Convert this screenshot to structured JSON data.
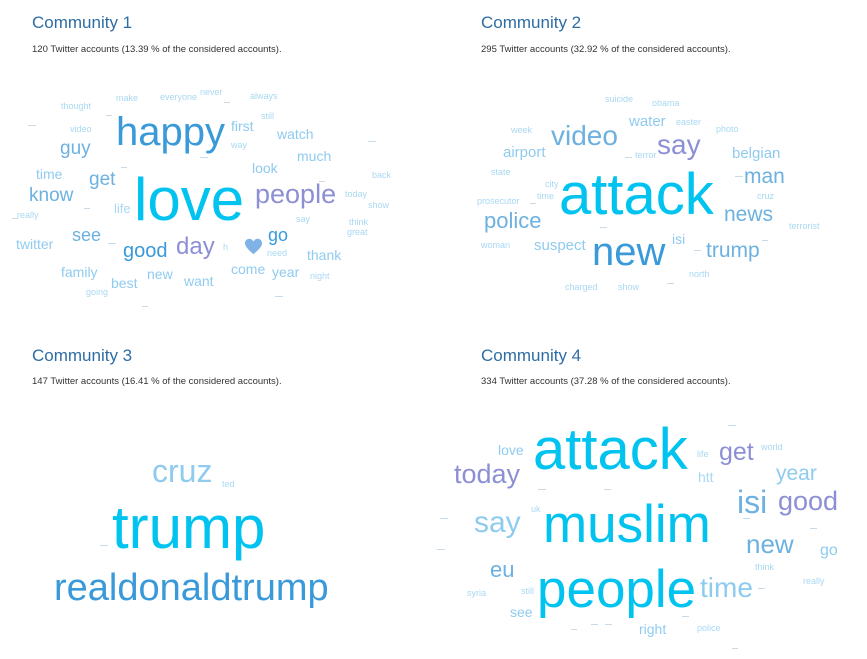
{
  "communities": [
    {
      "title": "Community 1",
      "subtitle": "120 Twitter accounts (13.39 % of the considered accounts).",
      "words": {
        "love": "love",
        "happy": "happy",
        "people": "people",
        "day": "day",
        "good": "good",
        "know": "know",
        "get": "get",
        "guy": "guy",
        "see": "see",
        "go": "go",
        "first": "first",
        "watch": "watch",
        "much": "much",
        "look": "look",
        "come": "come",
        "year": "year",
        "thank": "thank",
        "new": "new",
        "want": "want",
        "best": "best",
        "family": "family",
        "twitter": "twitter",
        "time": "time",
        "life": "life",
        "thought": "thought",
        "video": "video",
        "make": "make",
        "everyone": "everyone",
        "never": "never",
        "always": "always",
        "still": "still",
        "way": "way",
        "back": "back",
        "today": "today",
        "show": "show",
        "say": "say",
        "think": "think",
        "great": "great",
        "need": "need",
        "night": "night",
        "going": "going",
        "really": "really",
        "h": "h"
      }
    },
    {
      "title": "Community 2",
      "subtitle": "295 Twitter accounts (32.92 % of the considered accounts).",
      "words": {
        "attack": "attack",
        "new": "new",
        "video": "video",
        "say": "say",
        "police": "police",
        "man": "man",
        "news": "news",
        "trump": "trump",
        "belgian": "belgian",
        "suspect": "suspect",
        "airport": "airport",
        "water": "water",
        "isi": "isi",
        "suicide": "suicide",
        "obama": "obama",
        "easter": "easter",
        "photo": "photo",
        "week": "week",
        "terror": "terror",
        "state": "state",
        "city": "city",
        "cruz": "cruz",
        "time": "time",
        "prosecutor": "prosecutor",
        "terrorist": "terrorist",
        "woman": "woman",
        "north": "north",
        "charged": "charged",
        "show": "show"
      }
    },
    {
      "title": "Community 3",
      "subtitle": "147 Twitter accounts (16.41 % of the considered accounts).",
      "words": {
        "trump": "trump",
        "realdonaldtrump": "realdonaldtrump",
        "cruz": "cruz",
        "ted": "ted"
      }
    },
    {
      "title": "Community 4",
      "subtitle": "334 Twitter accounts (37.28 % of the considered accounts).",
      "words": {
        "attack": "attack",
        "muslim": "muslim",
        "people": "people",
        "say": "say",
        "today": "today",
        "isi": "isi",
        "good": "good",
        "new": "new",
        "get": "get",
        "time": "time",
        "year": "year",
        "eu": "eu",
        "love": "love",
        "life": "life",
        "world": "world",
        "htt": "htt",
        "uk": "uk",
        "go": "go",
        "think": "think",
        "really": "really",
        "syria": "syria",
        "still": "still",
        "see": "see",
        "right": "right",
        "police": "police"
      }
    }
  ],
  "colors": {
    "title": "#2e6da4",
    "cyan": "#00c3f0",
    "blue": "#3a9ad9",
    "purple": "#8d8fd6",
    "lightblue": "#8fcbef",
    "pale": "#a9d8f2"
  },
  "icons": {
    "heart": "heart-icon"
  }
}
